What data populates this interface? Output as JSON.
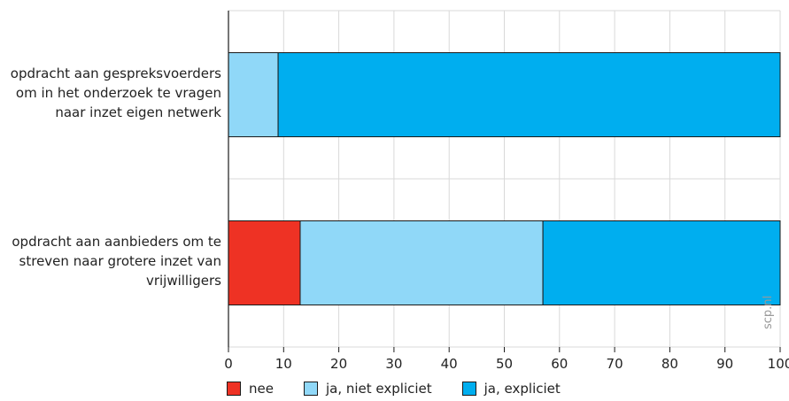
{
  "chart_data": {
    "type": "bar",
    "orientation": "horizontal",
    "stacked": true,
    "categories": [
      "opdracht aan gespreksvoerders om in het onderzoek te vragen naar inzet eigen netwerk",
      "opdracht aan aanbieders om te streven naar grotere inzet van vrijwilligers"
    ],
    "category_lines": [
      [
        "opdracht aan gespreksvoerders",
        "om in het onderzoek te vragen",
        "naar inzet eigen netwerk"
      ],
      [
        "opdracht aan aanbieders om te",
        "streven naar grotere inzet van",
        "vrijwilligers"
      ]
    ],
    "series": [
      {
        "name": "nee",
        "color": "#ee3224",
        "values": [
          0,
          13
        ]
      },
      {
        "name": "ja, niet expliciet",
        "color": "#90d8f8",
        "values": [
          9,
          44
        ]
      },
      {
        "name": "ja, expliciet",
        "color": "#00aeef",
        "values": [
          91,
          43
        ]
      }
    ],
    "xlim": [
      0,
      100
    ],
    "xticks": [
      "0",
      "10",
      "20",
      "30",
      "40",
      "50",
      "60",
      "70",
      "80",
      "90",
      "100"
    ],
    "grid": true,
    "legend": "bottom",
    "xlabel": "",
    "ylabel": ""
  },
  "watermark": "scp.nl"
}
